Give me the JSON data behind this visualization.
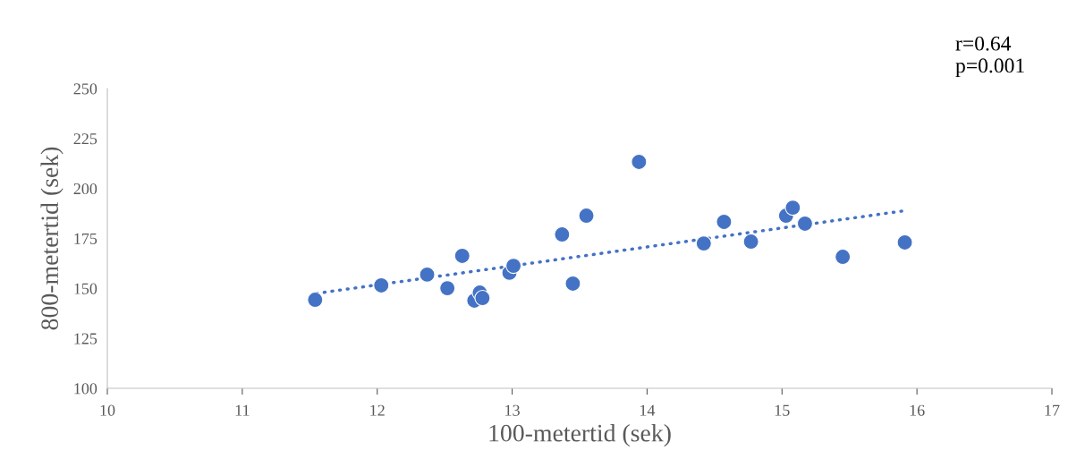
{
  "chart_data": {
    "type": "scatter",
    "xlabel": "100-metertid (sek)",
    "ylabel": "800-metertid (sek)",
    "annotations": [
      "r=0.64\np=0.001"
    ],
    "xlim": [
      10,
      17
    ],
    "xticks": [
      10,
      11,
      12,
      13,
      14,
      15,
      16,
      17
    ],
    "ylim": [
      100,
      250
    ],
    "yticks": [
      100,
      125,
      150,
      175,
      200,
      225,
      250
    ],
    "grid": false,
    "marker": "circle",
    "series": [
      {
        "color": "#4472c4",
        "x": [
          11.54,
          12.03,
          12.37,
          12.52,
          12.63,
          12.72,
          12.76,
          12.78,
          12.98,
          13.01,
          13.37,
          13.45,
          13.55,
          13.94,
          14.42,
          14.57,
          14.77,
          15.03,
          15.08,
          15.17,
          15.45,
          15.91
        ],
        "values": [
          144.3,
          151.5,
          156.9,
          150.1,
          166.3,
          143.9,
          147.9,
          145.2,
          157.8,
          161.3,
          177.0,
          152.4,
          186.4,
          213.3,
          172.5,
          183.3,
          173.4,
          186.4,
          190.4,
          182.4,
          165.8,
          173.0
        ]
      },
      {
        "type": "line",
        "color": "#4472c4",
        "line_style": "dotted",
        "marker": "none",
        "x": [
          11.55,
          15.89
        ],
        "values": [
          147.5,
          188.7
        ]
      }
    ]
  }
}
